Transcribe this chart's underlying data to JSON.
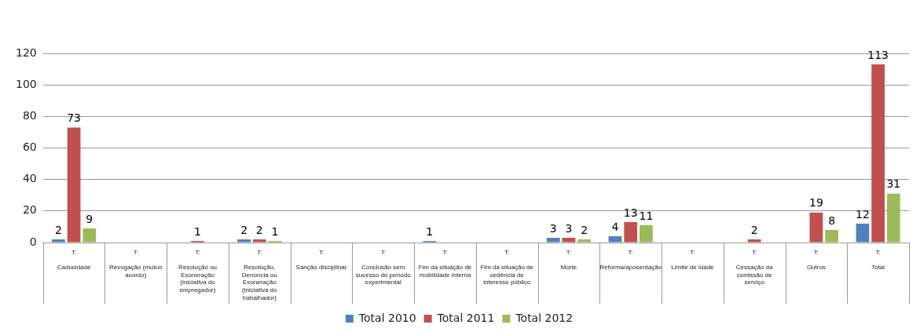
{
  "chart_data": {
    "type": "bar",
    "categories": [
      "T: Caducidade",
      "T: Revogação (mútuo acordo)",
      "T: Resolução ou Exoneração (iniciativa do empregador)",
      "T: Resolução, Denúncia ou Exoneração (iniciativa do trabalhador)",
      "T: Sanção disciplinar",
      "T: Conclusão sem sucesso do período experimental",
      "T: Fim da situação de mobilidade interna",
      "T: Fim da situação de cedência de interesse público",
      "T: Morte",
      "T: Reforma/aposentação",
      "T: Limite de idade",
      "T: Cessação da comissão de serviço",
      "T: Outros",
      "T: Total"
    ],
    "series": [
      {
        "name": "Total 2010",
        "color": "#4f81bd",
        "values": [
          2,
          null,
          null,
          2,
          null,
          null,
          1,
          null,
          3,
          4,
          null,
          null,
          null,
          12
        ]
      },
      {
        "name": "Total 2011",
        "color": "#c0504d",
        "values": [
          73,
          null,
          1,
          2,
          null,
          null,
          null,
          null,
          3,
          13,
          null,
          2,
          19,
          113
        ]
      },
      {
        "name": "Total 2012",
        "color": "#9bbb59",
        "values": [
          9,
          null,
          null,
          1,
          null,
          null,
          null,
          null,
          2,
          11,
          null,
          null,
          8,
          31
        ]
      }
    ],
    "ylim": [
      0,
      120
    ],
    "yticks": [
      0,
      20,
      40,
      60,
      80,
      100,
      120
    ],
    "grid": "y",
    "legend": "bottom",
    "data_labels": true
  }
}
